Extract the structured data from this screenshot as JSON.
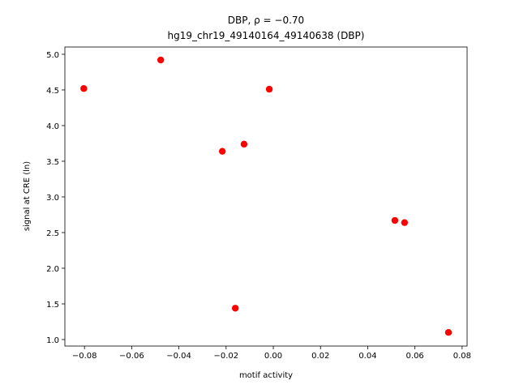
{
  "chart_data": {
    "type": "scatter",
    "title": "DBP, ρ = −0.70",
    "subtitle": "hg19_chr19_49140164_49140638 (DBP)",
    "x_label": "motif activity",
    "y_label": "signal at CRE (ln)",
    "color": "#ff0000",
    "x": [
      -0.0803,
      -0.0477,
      -0.0017,
      -0.0216,
      -0.0124,
      -0.0161,
      0.0515,
      0.0556,
      0.0742
    ],
    "values": [
      4.52,
      4.92,
      4.51,
      3.64,
      3.74,
      1.44,
      2.67,
      2.64,
      1.1
    ],
    "xlim": [
      -0.0883,
      0.0821
    ],
    "ylim": [
      0.909,
      5.102
    ],
    "xticks": [
      {
        "value": -0.08,
        "label": "−0.08"
      },
      {
        "value": -0.06,
        "label": "−0.06"
      },
      {
        "value": -0.04,
        "label": "−0.04"
      },
      {
        "value": -0.02,
        "label": "−0.02"
      },
      {
        "value": 0,
        "label": "0.00"
      },
      0.02,
      0.04,
      0.06,
      0.08
    ],
    "yticks": [
      {
        "value": 1,
        "label": "1.0"
      },
      1.5,
      {
        "value": 2,
        "label": "2.0"
      },
      2.5,
      {
        "value": 3,
        "label": "3.0"
      },
      3.5,
      {
        "value": 4,
        "label": "4.0"
      },
      4.5,
      {
        "value": 5,
        "label": "5.0"
      }
    ]
  }
}
